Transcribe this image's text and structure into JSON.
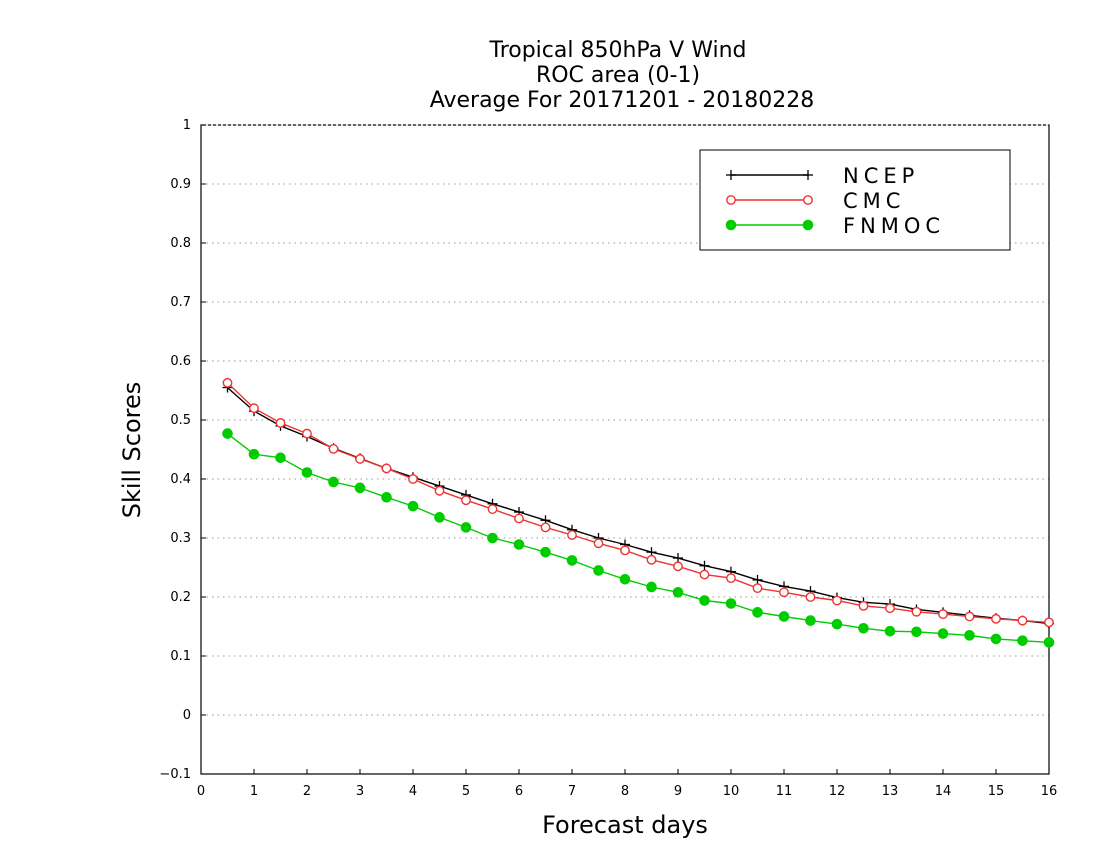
{
  "chart_data": {
    "type": "line",
    "title": [
      "Tropical 850hPa V Wind",
      "ROC area (0-1)",
      "Average For 20171201 - 20180228"
    ],
    "xlabel": "Forecast days",
    "ylabel": "Skill Scores",
    "xlim": [
      0,
      16
    ],
    "ylim": [
      -0.1,
      1
    ],
    "x_ticks": [
      "0",
      "1",
      "2",
      "3",
      "4",
      "5",
      "6",
      "7",
      "8",
      "9",
      "10",
      "11",
      "12",
      "13",
      "14",
      "15",
      "16"
    ],
    "y_ticks": [
      "−0.1",
      "0",
      "0.1",
      "0.2",
      "0.3",
      "0.4",
      "0.5",
      "0.6",
      "0.7",
      "0.8",
      "0.9",
      "1"
    ],
    "grid": "horizontal dotted",
    "legend_position": "top-right",
    "x": [
      0.5,
      1,
      1.5,
      2,
      2.5,
      3,
      3.5,
      4,
      4.5,
      5,
      5.5,
      6,
      6.5,
      7,
      7.5,
      8,
      8.5,
      9,
      9.5,
      10,
      10.5,
      11,
      11.5,
      12,
      12.5,
      13,
      13.5,
      14,
      14.5,
      15,
      15.5,
      16
    ],
    "series": [
      {
        "name": "NCEP",
        "color": "#000000",
        "marker": "plus",
        "values": [
          0.555,
          0.515,
          0.49,
          0.472,
          0.452,
          0.435,
          0.418,
          0.403,
          0.388,
          0.373,
          0.358,
          0.344,
          0.33,
          0.314,
          0.3,
          0.289,
          0.276,
          0.266,
          0.253,
          0.243,
          0.229,
          0.218,
          0.21,
          0.199,
          0.191,
          0.188,
          0.179,
          0.174,
          0.169,
          0.164,
          0.16,
          0.155
        ]
      },
      {
        "name": "CMC",
        "color": "#ee3333",
        "marker": "open-circle",
        "values": [
          0.563,
          0.52,
          0.495,
          0.477,
          0.451,
          0.434,
          0.418,
          0.4,
          0.38,
          0.364,
          0.349,
          0.333,
          0.318,
          0.305,
          0.291,
          0.279,
          0.263,
          0.252,
          0.238,
          0.232,
          0.215,
          0.208,
          0.2,
          0.194,
          0.185,
          0.181,
          0.175,
          0.171,
          0.167,
          0.163,
          0.16,
          0.157
        ]
      },
      {
        "name": "FNMOC",
        "color": "#00cc00",
        "marker": "filled-circle",
        "values": [
          0.477,
          0.442,
          0.436,
          0.411,
          0.395,
          0.385,
          0.369,
          0.354,
          0.335,
          0.318,
          0.3,
          0.289,
          0.276,
          0.262,
          0.245,
          0.23,
          0.217,
          0.208,
          0.194,
          0.189,
          0.174,
          0.167,
          0.16,
          0.154,
          0.147,
          0.142,
          0.141,
          0.138,
          0.135,
          0.129,
          0.126,
          0.123
        ]
      }
    ]
  }
}
